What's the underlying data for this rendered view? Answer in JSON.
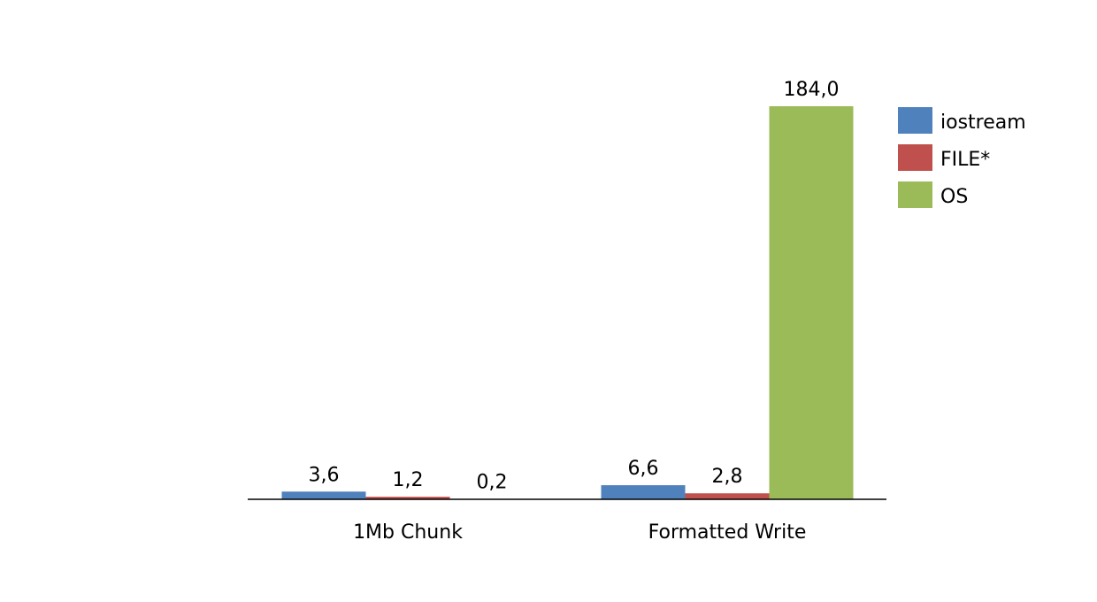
{
  "chart_data": {
    "type": "bar",
    "categories": [
      "1Mb Chunk",
      "Formatted Write"
    ],
    "series": [
      {
        "name": "iostream",
        "color": "#4F81BD",
        "values": [
          3.6,
          6.6
        ],
        "labels": [
          "3,6",
          "6,6"
        ]
      },
      {
        "name": "FILE*",
        "color": "#C0504D",
        "values": [
          1.2,
          2.8
        ],
        "labels": [
          "1,2",
          "2,8"
        ]
      },
      {
        "name": "OS",
        "color": "#9BBB59",
        "values": [
          0.2,
          184.0
        ],
        "labels": [
          "0,2",
          "184,0"
        ]
      }
    ],
    "ylim": [
      0,
      184
    ],
    "grid": false,
    "legend": "top-right",
    "title": "",
    "xlabel": "",
    "ylabel": ""
  }
}
